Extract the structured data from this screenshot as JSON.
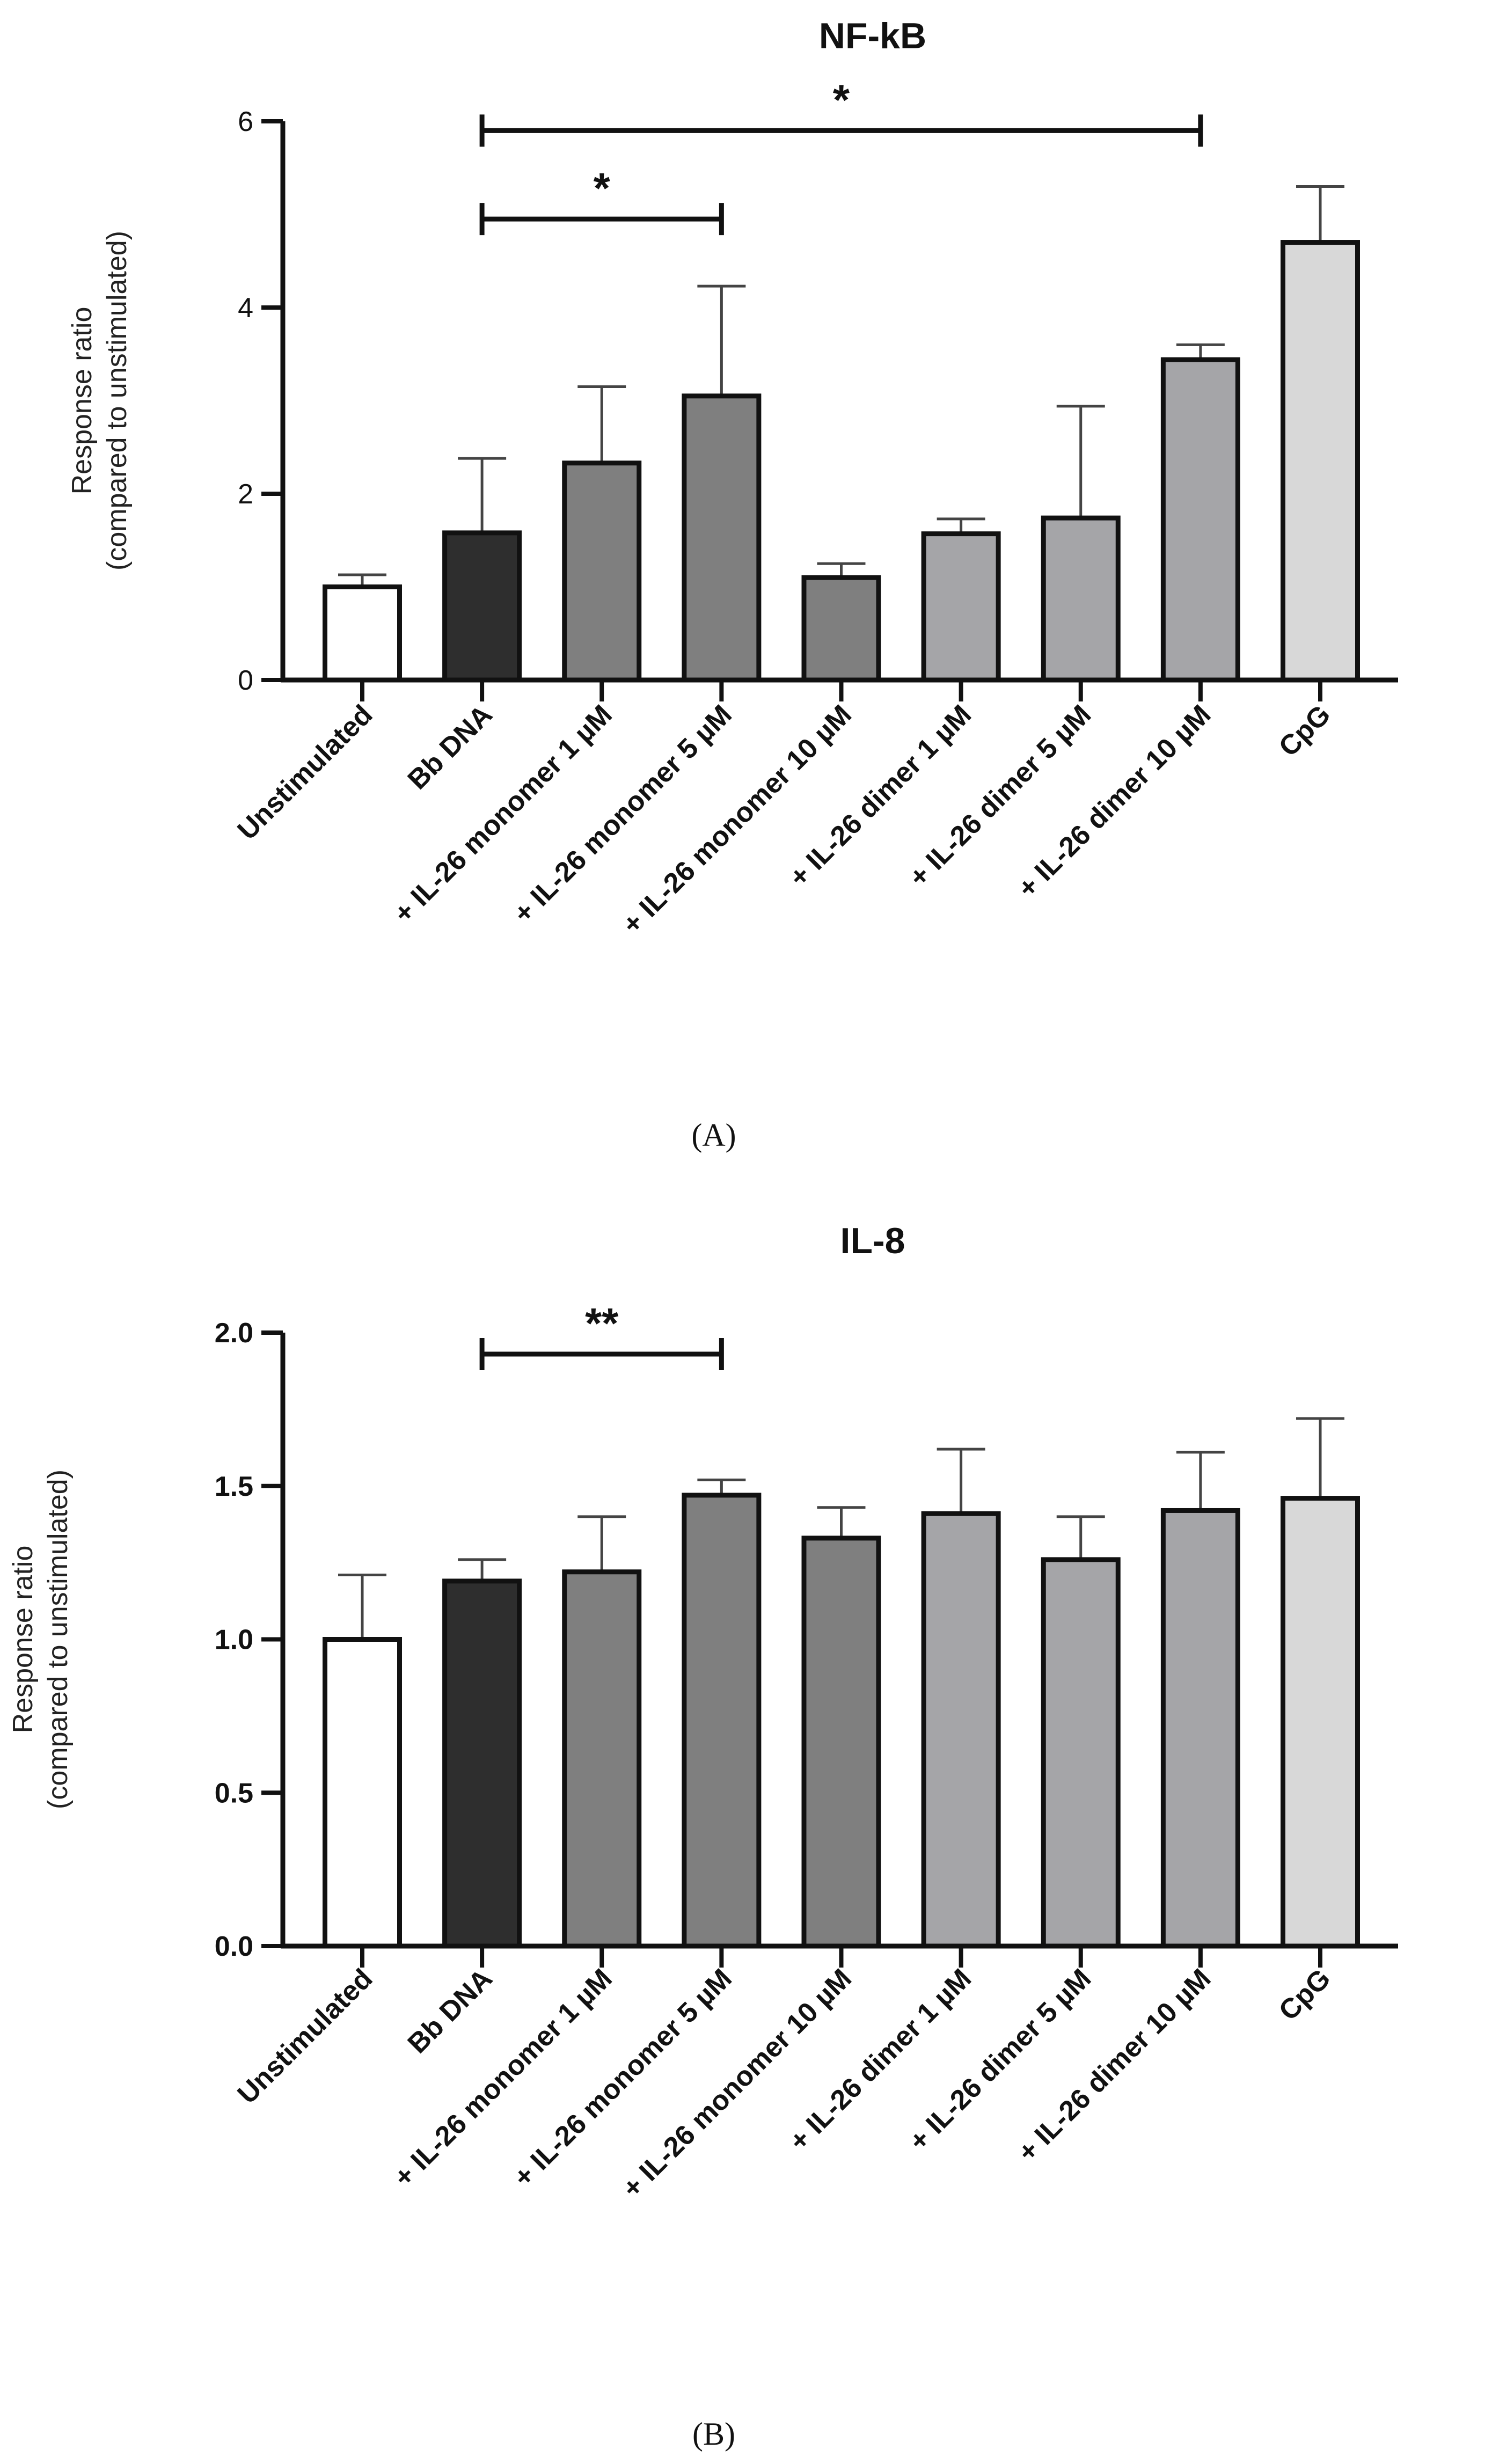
{
  "chart_data": [
    {
      "type": "bar",
      "panel": "A",
      "panel_label": "(A)",
      "title": "NF-kB",
      "ylabel_line1": "Response ratio",
      "ylabel_line2": "(compared to unstimulated)",
      "ylim": [
        0,
        6
      ],
      "yticks": [
        "0",
        "2",
        "4",
        "6"
      ],
      "ytick_values": [
        0,
        2,
        4,
        6
      ],
      "categories": [
        "Unstimulated",
        "Bb DNA",
        "+ IL-26 monomer 1 µM",
        "+ IL-26 monomer 5 µM",
        "+ IL-26 monomer 10 µM",
        "+ IL-26 dimer 1 µM",
        "+ IL-26 dimer 5 µM",
        "+ IL-26 dimer 10 µM",
        "CpG"
      ],
      "values": [
        1.0,
        1.58,
        2.33,
        3.05,
        1.1,
        1.57,
        1.74,
        3.44,
        4.7
      ],
      "errors": [
        0.13,
        0.8,
        0.82,
        1.18,
        0.15,
        0.16,
        1.2,
        0.16,
        0.6
      ],
      "bar_colors": [
        "#ffffff",
        "#2e2e2e",
        "#7f7f7f",
        "#7f7f7f",
        "#7f7f7f",
        "#a5a5a8",
        "#a5a5a8",
        "#a5a5a8",
        "#d8d8d8"
      ],
      "significance": [
        {
          "from": 1,
          "to": 3,
          "y": 4.95,
          "label": "*"
        },
        {
          "from": 1,
          "to": 7,
          "y": 5.9,
          "label": "*"
        }
      ]
    },
    {
      "type": "bar",
      "panel": "B",
      "panel_label": "(B)",
      "title": "IL-8",
      "ylabel_line1": "Response ratio",
      "ylabel_line2": "(compared to unstimulated)",
      "ylim": [
        0,
        2.0
      ],
      "yticks": [
        "0.0",
        "0.5",
        "1.0",
        "1.5",
        "2.0"
      ],
      "ytick_values": [
        0,
        0.5,
        1.0,
        1.5,
        2.0
      ],
      "categories": [
        "Unstimulated",
        "Bb DNA",
        "+ IL-26 monomer 1 µM",
        "+ IL-26 monomer 5 µM",
        "+ IL-26 monomer 10 µM",
        "+ IL-26 dimer 1 µM",
        "+ IL-26 dimer 5 µM",
        "+ IL-26 dimer 10 µM",
        "CpG"
      ],
      "values": [
        1.0,
        1.19,
        1.22,
        1.47,
        1.33,
        1.41,
        1.26,
        1.42,
        1.46
      ],
      "errors": [
        0.21,
        0.07,
        0.18,
        0.05,
        0.1,
        0.21,
        0.14,
        0.19,
        0.26
      ],
      "bar_colors": [
        "#ffffff",
        "#2e2e2e",
        "#7f7f7f",
        "#7f7f7f",
        "#7f7f7f",
        "#a5a5a8",
        "#a5a5a8",
        "#a5a5a8",
        "#d8d8d8"
      ],
      "significance": [
        {
          "from": 1,
          "to": 3,
          "y": 1.93,
          "label": "**"
        }
      ]
    }
  ]
}
